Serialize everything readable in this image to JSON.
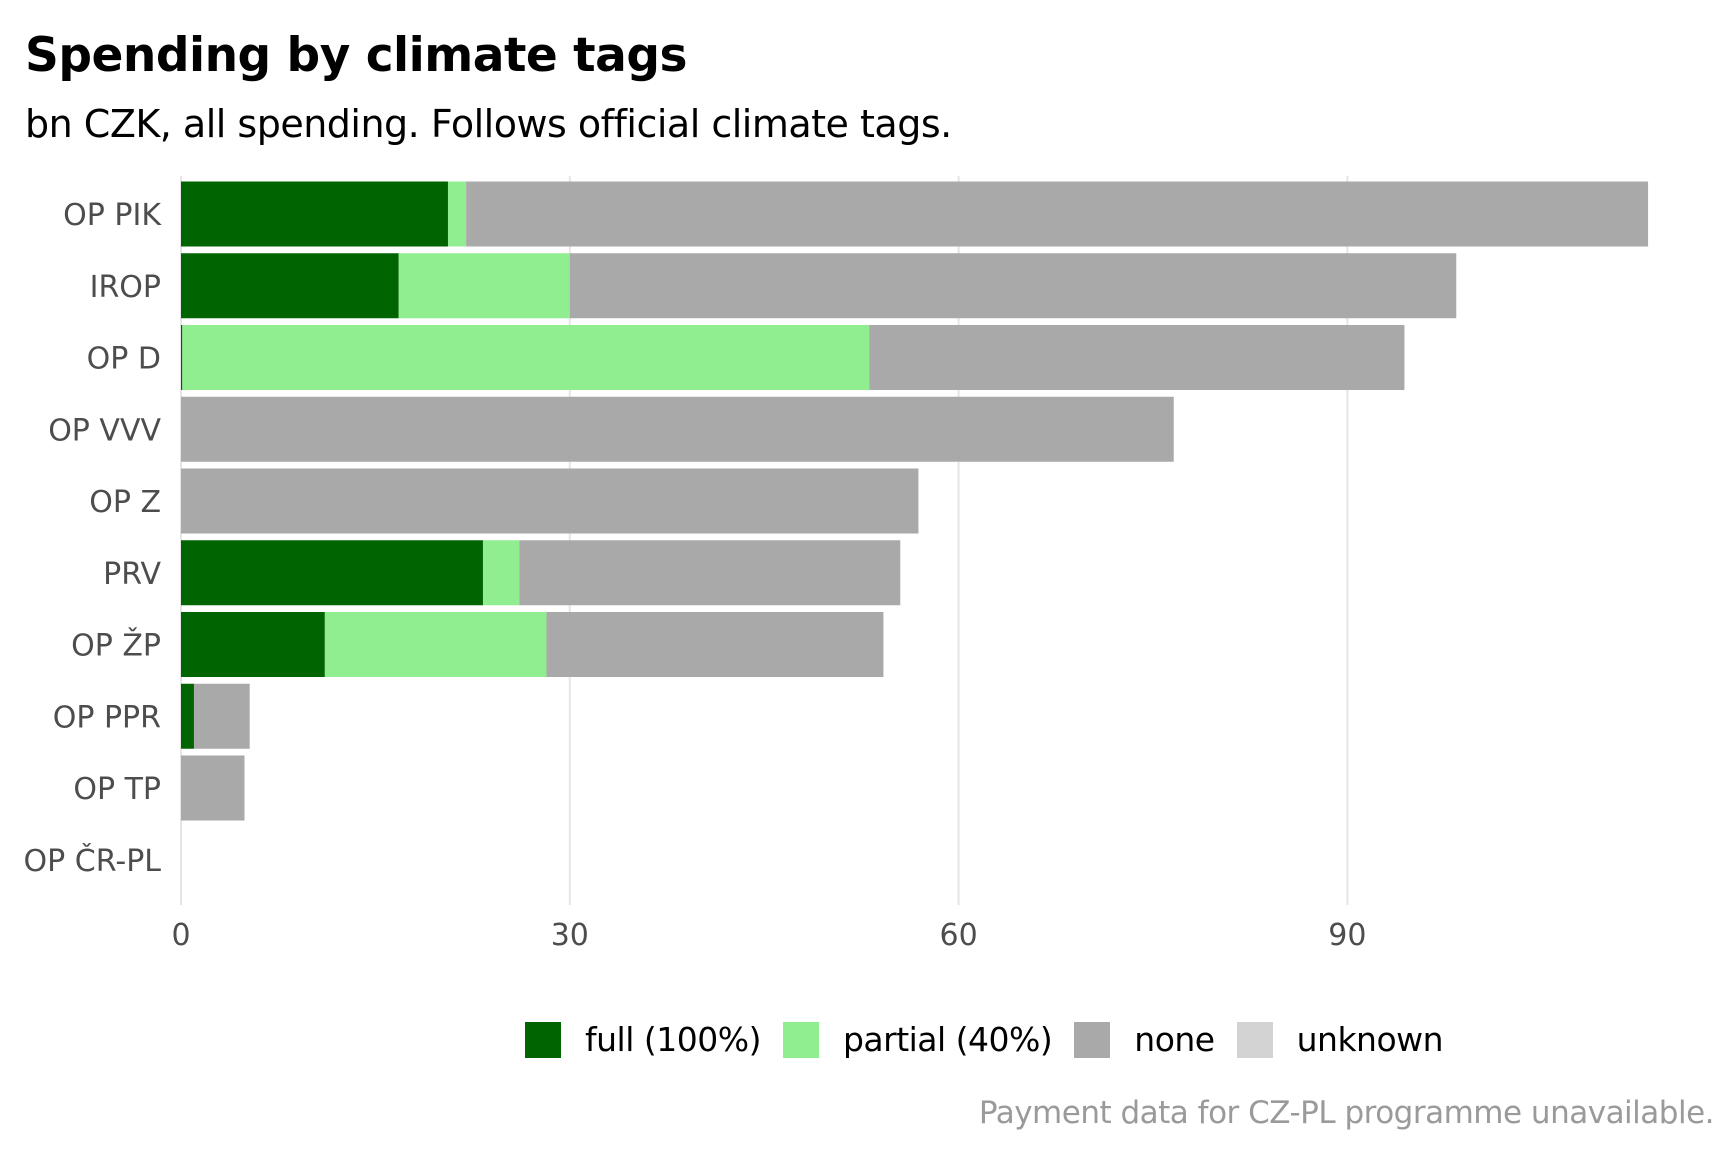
{
  "title": "Spending by climate tags",
  "subtitle": "bn CZK, all spending. Follows official climate tags.",
  "caption": "Payment data for CZ-PL programme unavailable.",
  "colors": {
    "full": "#006400",
    "partial": "#90ee90",
    "none": "#a9a9a9",
    "unknown": "#d3d3d3",
    "grid": "#e5e5e5",
    "axis_text": "#4d4d4d"
  },
  "legend": [
    {
      "key": "full",
      "label": "full (100%)",
      "color": "#006400"
    },
    {
      "key": "partial",
      "label": "partial (40%)",
      "color": "#90ee90"
    },
    {
      "key": "none",
      "label": "none",
      "color": "#a9a9a9"
    },
    {
      "key": "unknown",
      "label": "unknown",
      "color": "#d3d3d3"
    }
  ],
  "chart_data": {
    "type": "bar",
    "orientation": "horizontal",
    "stacked": true,
    "categories": [
      "OP PIK",
      "IROP",
      "OP D",
      "OP VVV",
      "OP Z",
      "PRV",
      "OP ŽP",
      "OP PPR",
      "OP TP",
      "OP ČR-PL"
    ],
    "series": [
      {
        "name": "full (100%)",
        "color": "#006400",
        "values": [
          20.6,
          16.8,
          0.1,
          0,
          0,
          23.3,
          11.1,
          1.0,
          0,
          0
        ]
      },
      {
        "name": "partial (40%)",
        "color": "#90ee90",
        "values": [
          1.4,
          13.2,
          53.0,
          0,
          0,
          2.8,
          17.1,
          0,
          0,
          0
        ]
      },
      {
        "name": "none",
        "color": "#a9a9a9",
        "values": [
          91.2,
          68.4,
          41.3,
          76.6,
          56.9,
          29.4,
          26.0,
          4.3,
          4.9,
          0
        ]
      },
      {
        "name": "unknown",
        "color": "#d3d3d3",
        "values": [
          0,
          0,
          0,
          0,
          0,
          0,
          0,
          0,
          0,
          0
        ]
      }
    ],
    "xlim": [
      0,
      118
    ],
    "xticks": [
      0,
      30,
      60,
      90
    ],
    "xticklabels": [
      "0",
      "30",
      "60",
      "90"
    ],
    "grid": true,
    "legend_position": "bottom"
  }
}
